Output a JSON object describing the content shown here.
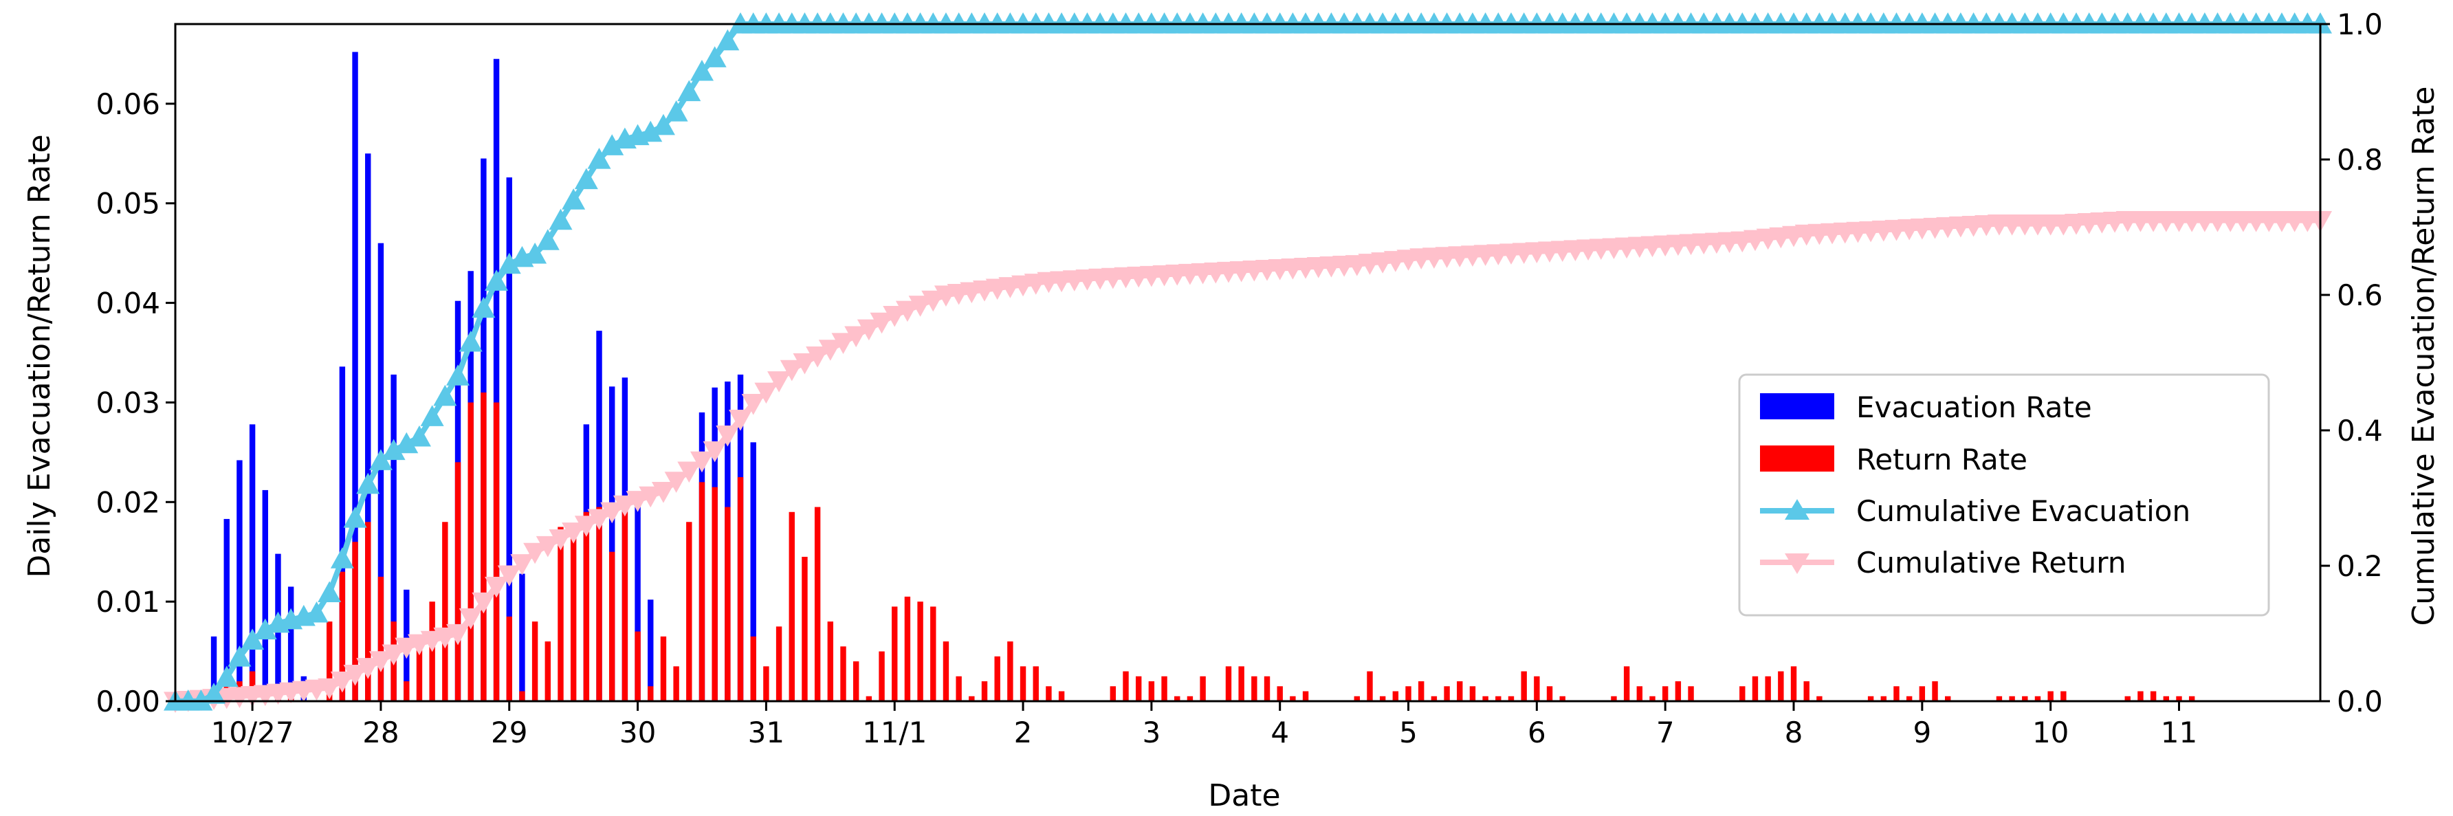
{
  "chart_data": {
    "type": "bar",
    "xlabel": "Date",
    "ylabel": "Daily Evacuation/Return Rate",
    "y2label": "Cumulative Evacuation/Return Rate",
    "ylim": [
      0,
      0.068
    ],
    "y2lim": [
      0,
      1.0
    ],
    "xlim": [
      -0.2,
      16.5
    ],
    "yticks": [
      "0.00",
      "0.01",
      "0.02",
      "0.03",
      "0.04",
      "0.05",
      "0.06"
    ],
    "y2ticks": [
      "0.0",
      "0.2",
      "0.4",
      "0.6",
      "0.8",
      "1.0"
    ],
    "date_ticks": [
      {
        "label": "10/27",
        "day": 0.4
      },
      {
        "label": "28",
        "day": 1.4
      },
      {
        "label": "29",
        "day": 2.4
      },
      {
        "label": "30",
        "day": 3.4
      },
      {
        "label": "31",
        "day": 4.4
      },
      {
        "label": "11/1",
        "day": 5.4
      },
      {
        "label": "2",
        "day": 6.4
      },
      {
        "label": "3",
        "day": 7.4
      },
      {
        "label": "4",
        "day": 8.4
      },
      {
        "label": "5",
        "day": 9.4
      },
      {
        "label": "6",
        "day": 10.4
      },
      {
        "label": "7",
        "day": 11.4
      },
      {
        "label": "8",
        "day": 12.4
      },
      {
        "label": "9",
        "day": 13.4
      },
      {
        "label": "10",
        "day": 14.4
      },
      {
        "label": "11",
        "day": 15.4
      }
    ],
    "legend_position": "center-right",
    "series": [
      {
        "name": "Evacuation Rate",
        "kind": "bar",
        "color": "#0000ff",
        "points": [
          [
            0.1,
            0.0065
          ],
          [
            0.2,
            0.0183
          ],
          [
            0.3,
            0.0242
          ],
          [
            0.4,
            0.0278
          ],
          [
            0.5,
            0.0212
          ],
          [
            0.6,
            0.0148
          ],
          [
            0.7,
            0.0115
          ],
          [
            0.8,
            0.0025
          ],
          [
            1.1,
            0.0336
          ],
          [
            1.2,
            0.0652
          ],
          [
            1.3,
            0.055
          ],
          [
            1.4,
            0.046
          ],
          [
            1.5,
            0.0328
          ],
          [
            1.6,
            0.0112
          ],
          [
            2.0,
            0.0402
          ],
          [
            2.1,
            0.0432
          ],
          [
            2.2,
            0.0545
          ],
          [
            2.3,
            0.0645
          ],
          [
            2.4,
            0.0526
          ],
          [
            2.5,
            0.0128
          ],
          [
            3.0,
            0.0278
          ],
          [
            3.1,
            0.0372
          ],
          [
            3.2,
            0.0316
          ],
          [
            3.3,
            0.0325
          ],
          [
            3.4,
            0.02
          ],
          [
            3.5,
            0.0102
          ],
          [
            3.9,
            0.029
          ],
          [
            4.0,
            0.0315
          ],
          [
            4.1,
            0.0321
          ],
          [
            4.2,
            0.0328
          ],
          [
            4.3,
            0.026
          ]
        ]
      },
      {
        "name": "Return Rate",
        "kind": "bar",
        "color": "#ff0000",
        "points": [
          [
            0.0,
            0.0005
          ],
          [
            0.1,
            0.001
          ],
          [
            0.2,
            0.0015
          ],
          [
            0.3,
            0.002
          ],
          [
            0.4,
            0.003
          ],
          [
            0.5,
            0.0015
          ],
          [
            0.6,
            0.001
          ],
          [
            0.7,
            0.0005
          ],
          [
            1.0,
            0.008
          ],
          [
            1.1,
            0.013
          ],
          [
            1.2,
            0.016
          ],
          [
            1.3,
            0.018
          ],
          [
            1.4,
            0.0125
          ],
          [
            1.5,
            0.008
          ],
          [
            1.6,
            0.002
          ],
          [
            1.7,
            0.006
          ],
          [
            1.8,
            0.01
          ],
          [
            1.9,
            0.018
          ],
          [
            2.0,
            0.024
          ],
          [
            2.1,
            0.03
          ],
          [
            2.2,
            0.031
          ],
          [
            2.3,
            0.03
          ],
          [
            2.4,
            0.0085
          ],
          [
            2.5,
            0.001
          ],
          [
            2.6,
            0.008
          ],
          [
            2.7,
            0.006
          ],
          [
            2.8,
            0.0175
          ],
          [
            2.9,
            0.0175
          ],
          [
            3.0,
            0.019
          ],
          [
            3.1,
            0.0195
          ],
          [
            3.2,
            0.015
          ],
          [
            3.3,
            0.0195
          ],
          [
            3.4,
            0.007
          ],
          [
            3.5,
            0.0015
          ],
          [
            3.6,
            0.0065
          ],
          [
            3.7,
            0.0035
          ],
          [
            3.8,
            0.018
          ],
          [
            3.9,
            0.022
          ],
          [
            4.0,
            0.0215
          ],
          [
            4.1,
            0.0195
          ],
          [
            4.2,
            0.0225
          ],
          [
            4.3,
            0.0065
          ],
          [
            4.4,
            0.0035
          ],
          [
            4.5,
            0.0075
          ],
          [
            4.6,
            0.019
          ],
          [
            4.7,
            0.0145
          ],
          [
            4.8,
            0.0195
          ],
          [
            4.9,
            0.008
          ],
          [
            5.0,
            0.0055
          ],
          [
            5.1,
            0.004
          ],
          [
            5.2,
            0.0005
          ],
          [
            5.3,
            0.005
          ],
          [
            5.4,
            0.0095
          ],
          [
            5.5,
            0.0105
          ],
          [
            5.6,
            0.01
          ],
          [
            5.7,
            0.0095
          ],
          [
            5.8,
            0.006
          ],
          [
            5.9,
            0.0025
          ],
          [
            6.0,
            0.0005
          ],
          [
            6.1,
            0.002
          ],
          [
            6.2,
            0.0045
          ],
          [
            6.3,
            0.006
          ],
          [
            6.4,
            0.0035
          ],
          [
            6.5,
            0.0035
          ],
          [
            6.6,
            0.0015
          ],
          [
            6.7,
            0.001
          ],
          [
            7.1,
            0.0015
          ],
          [
            7.2,
            0.003
          ],
          [
            7.3,
            0.0025
          ],
          [
            7.4,
            0.002
          ],
          [
            7.5,
            0.0025
          ],
          [
            7.6,
            0.0005
          ],
          [
            7.7,
            0.0005
          ],
          [
            7.8,
            0.0025
          ],
          [
            8.0,
            0.0035
          ],
          [
            8.1,
            0.0035
          ],
          [
            8.2,
            0.0025
          ],
          [
            8.3,
            0.0025
          ],
          [
            8.4,
            0.0015
          ],
          [
            8.5,
            0.0005
          ],
          [
            8.6,
            0.001
          ],
          [
            9.0,
            0.0005
          ],
          [
            9.1,
            0.003
          ],
          [
            9.2,
            0.0005
          ],
          [
            9.3,
            0.001
          ],
          [
            9.4,
            0.0015
          ],
          [
            9.5,
            0.002
          ],
          [
            9.6,
            0.0005
          ],
          [
            9.7,
            0.0015
          ],
          [
            9.8,
            0.002
          ],
          [
            9.9,
            0.0015
          ],
          [
            10.0,
            0.0005
          ],
          [
            10.1,
            0.0005
          ],
          [
            10.2,
            0.0005
          ],
          [
            10.3,
            0.003
          ],
          [
            10.4,
            0.0025
          ],
          [
            10.5,
            0.0015
          ],
          [
            10.6,
            0.0005
          ],
          [
            11.0,
            0.0005
          ],
          [
            11.1,
            0.0035
          ],
          [
            11.2,
            0.0015
          ],
          [
            11.3,
            0.0005
          ],
          [
            11.4,
            0.0015
          ],
          [
            11.5,
            0.002
          ],
          [
            11.6,
            0.0015
          ],
          [
            12.0,
            0.0015
          ],
          [
            12.1,
            0.0025
          ],
          [
            12.2,
            0.0025
          ],
          [
            12.3,
            0.003
          ],
          [
            12.4,
            0.0035
          ],
          [
            12.5,
            0.002
          ],
          [
            12.6,
            0.0005
          ],
          [
            13.0,
            0.0005
          ],
          [
            13.1,
            0.0005
          ],
          [
            13.2,
            0.0015
          ],
          [
            13.3,
            0.0005
          ],
          [
            13.4,
            0.0015
          ],
          [
            13.5,
            0.002
          ],
          [
            13.6,
            0.0005
          ],
          [
            14.0,
            0.0005
          ],
          [
            14.1,
            0.0005
          ],
          [
            14.2,
            0.0005
          ],
          [
            14.3,
            0.0005
          ],
          [
            14.4,
            0.001
          ],
          [
            14.5,
            0.001
          ],
          [
            15.0,
            0.0005
          ],
          [
            15.1,
            0.001
          ],
          [
            15.2,
            0.001
          ],
          [
            15.3,
            0.0005
          ],
          [
            15.4,
            0.0005
          ],
          [
            15.5,
            0.0005
          ]
        ]
      },
      {
        "name": "Cumulative Evacuation",
        "kind": "line",
        "marker": "triangle-up",
        "color": "#5bc8e8",
        "points": [
          [
            -0.2,
            0.0
          ],
          [
            0.0,
            0.0
          ],
          [
            0.1,
            0.01
          ],
          [
            0.2,
            0.035
          ],
          [
            0.3,
            0.065
          ],
          [
            0.4,
            0.09
          ],
          [
            0.5,
            0.105
          ],
          [
            0.6,
            0.115
          ],
          [
            0.7,
            0.12
          ],
          [
            0.8,
            0.125
          ],
          [
            0.9,
            0.13
          ],
          [
            1.0,
            0.16
          ],
          [
            1.1,
            0.21
          ],
          [
            1.2,
            0.27
          ],
          [
            1.3,
            0.32
          ],
          [
            1.4,
            0.355
          ],
          [
            1.5,
            0.37
          ],
          [
            1.6,
            0.38
          ],
          [
            1.7,
            0.39
          ],
          [
            1.8,
            0.42
          ],
          [
            1.9,
            0.45
          ],
          [
            2.0,
            0.48
          ],
          [
            2.1,
            0.53
          ],
          [
            2.2,
            0.58
          ],
          [
            2.3,
            0.62
          ],
          [
            2.4,
            0.645
          ],
          [
            2.5,
            0.655
          ],
          [
            2.6,
            0.66
          ],
          [
            2.7,
            0.68
          ],
          [
            2.8,
            0.71
          ],
          [
            2.9,
            0.74
          ],
          [
            3.0,
            0.77
          ],
          [
            3.1,
            0.8
          ],
          [
            3.2,
            0.82
          ],
          [
            3.3,
            0.83
          ],
          [
            3.4,
            0.835
          ],
          [
            3.5,
            0.84
          ],
          [
            3.6,
            0.85
          ],
          [
            3.7,
            0.87
          ],
          [
            3.8,
            0.9
          ],
          [
            3.9,
            0.93
          ],
          [
            4.0,
            0.95
          ],
          [
            4.1,
            0.975
          ],
          [
            4.2,
            1.0
          ],
          [
            4.3,
            1.0
          ],
          [
            5.0,
            1.0
          ],
          [
            6.0,
            1.0
          ],
          [
            7.0,
            1.0
          ],
          [
            8.0,
            1.0
          ],
          [
            9.0,
            1.0
          ],
          [
            10.0,
            1.0
          ],
          [
            11.0,
            1.0
          ],
          [
            12.0,
            1.0
          ],
          [
            13.0,
            1.0
          ],
          [
            14.0,
            1.0
          ],
          [
            15.0,
            1.0
          ],
          [
            16.0,
            1.0
          ],
          [
            16.5,
            1.0
          ]
        ]
      },
      {
        "name": "Cumulative Return",
        "kind": "line",
        "marker": "triangle-down",
        "color": "#ffc0cb",
        "points": [
          [
            -0.2,
            0.0
          ],
          [
            0.5,
            0.01
          ],
          [
            1.0,
            0.02
          ],
          [
            1.3,
            0.05
          ],
          [
            1.6,
            0.08
          ],
          [
            2.0,
            0.1
          ],
          [
            2.3,
            0.17
          ],
          [
            2.6,
            0.22
          ],
          [
            3.0,
            0.26
          ],
          [
            3.3,
            0.29
          ],
          [
            3.6,
            0.31
          ],
          [
            4.0,
            0.37
          ],
          [
            4.3,
            0.44
          ],
          [
            4.6,
            0.49
          ],
          [
            5.0,
            0.53
          ],
          [
            5.4,
            0.57
          ],
          [
            5.8,
            0.6
          ],
          [
            6.2,
            0.61
          ],
          [
            6.6,
            0.62
          ],
          [
            7.0,
            0.625
          ],
          [
            7.5,
            0.63
          ],
          [
            8.0,
            0.635
          ],
          [
            8.5,
            0.64
          ],
          [
            9.0,
            0.645
          ],
          [
            9.5,
            0.655
          ],
          [
            10.0,
            0.66
          ],
          [
            10.5,
            0.665
          ],
          [
            11.0,
            0.67
          ],
          [
            11.5,
            0.675
          ],
          [
            12.0,
            0.68
          ],
          [
            12.5,
            0.69
          ],
          [
            13.0,
            0.695
          ],
          [
            13.5,
            0.7
          ],
          [
            14.0,
            0.705
          ],
          [
            14.5,
            0.705
          ],
          [
            15.0,
            0.71
          ],
          [
            15.5,
            0.71
          ],
          [
            16.0,
            0.71
          ],
          [
            16.5,
            0.71
          ]
        ]
      }
    ]
  }
}
